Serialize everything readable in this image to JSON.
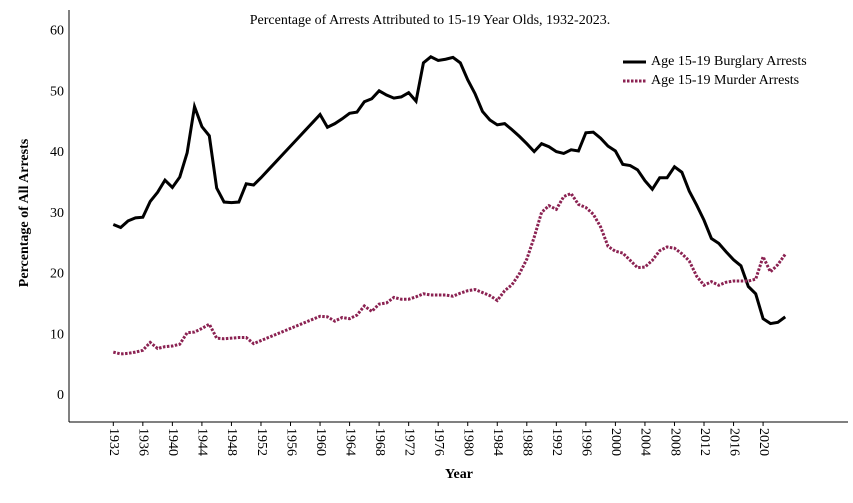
{
  "chart_data": {
    "type": "line",
    "title": "Percentage of Arrests Attributed to 15-19 Year Olds, 1932-2023.",
    "x_label": "Year",
    "y_label": "Percentage of All Arrests",
    "x": [
      1932,
      1933,
      1934,
      1935,
      1936,
      1937,
      1938,
      1939,
      1940,
      1941,
      1942,
      1943,
      1944,
      1945,
      1946,
      1947,
      1948,
      1949,
      1950,
      1951,
      1952,
      1953,
      1954,
      1955,
      1956,
      1957,
      1958,
      1959,
      1960,
      1961,
      1962,
      1963,
      1964,
      1965,
      1966,
      1967,
      1968,
      1969,
      1970,
      1971,
      1972,
      1973,
      1974,
      1975,
      1976,
      1977,
      1978,
      1979,
      1980,
      1981,
      1982,
      1983,
      1984,
      1985,
      1986,
      1987,
      1988,
      1989,
      1990,
      1991,
      1992,
      1993,
      1994,
      1995,
      1996,
      1997,
      1998,
      1999,
      2000,
      2001,
      2002,
      2003,
      2004,
      2005,
      2006,
      2007,
      2008,
      2009,
      2010,
      2011,
      2012,
      2013,
      2014,
      2015,
      2016,
      2017,
      2018,
      2019,
      2020,
      2021,
      2022,
      2023
    ],
    "series": [
      {
        "name": "Age 15-19 Burglary Arrests",
        "color": "#000000",
        "dash": "solid",
        "values": [
          28.2,
          27.7,
          28.8,
          29.3,
          29.4,
          32,
          33.5,
          35.5,
          34.3,
          36,
          40,
          47.6,
          44.3,
          42.8,
          34.2,
          31.9,
          31.8,
          31.9,
          34.9,
          34.7,
          35.9,
          37.2,
          38.5,
          39.8,
          41.1,
          42.4,
          43.7,
          45,
          46.3,
          44.2,
          44.8,
          45.6,
          46.5,
          46.7,
          48.4,
          48.9,
          50.2,
          49.5,
          49,
          49.2,
          49.9,
          48.5,
          54.8,
          55.8,
          55.2,
          55.4,
          55.7,
          54.8,
          52,
          49.7,
          46.8,
          45.4,
          44.6,
          44.8,
          43.8,
          42.7,
          41.5,
          40.2,
          41.5,
          41,
          40.2,
          39.9,
          40.5,
          40.3,
          43.3,
          43.4,
          42.4,
          41.1,
          40.3,
          38.1,
          37.9,
          37.2,
          35.4,
          34,
          35.9,
          35.9,
          37.7,
          36.8,
          33.7,
          31.4,
          28.9,
          25.9,
          25.1,
          23.7,
          22.4,
          21.4,
          18,
          16.8,
          12.7,
          11.9,
          12.1,
          13
        ]
      },
      {
        "name": "Age 15-19 Murder Arrests",
        "color": "#8b2252",
        "dash": "dotted",
        "values": [
          7.2,
          6.9,
          7,
          7.2,
          7.5,
          8.8,
          7.8,
          8.1,
          8.2,
          8.5,
          10.4,
          10.5,
          11.1,
          11.8,
          9.5,
          9.4,
          9.5,
          9.6,
          9.6,
          8.6,
          9.1,
          9.6,
          10.1,
          10.6,
          11.1,
          11.6,
          12.1,
          12.6,
          13.1,
          13,
          12.3,
          12.9,
          12.7,
          13.3,
          14.8,
          13.9,
          15.1,
          15.3,
          16.2,
          15.9,
          15.9,
          16.3,
          16.8,
          16.6,
          16.6,
          16.6,
          16.4,
          16.9,
          17.3,
          17.5,
          17,
          16.5,
          15.7,
          17.3,
          18.3,
          20.1,
          22.5,
          26.1,
          30.2,
          31.3,
          30.7,
          32.8,
          33.3,
          31.5,
          31,
          29.9,
          27.8,
          24.6,
          23.8,
          23.5,
          22.3,
          21.1,
          21.2,
          22.3,
          23.9,
          24.5,
          24.3,
          23.4,
          22.2,
          19.7,
          18.2,
          18.8,
          18.2,
          18.7,
          18.9,
          18.9,
          18.9,
          19.2,
          22.9,
          20.4,
          21.6,
          23.3
        ]
      }
    ],
    "xlim": [
      1926,
      2031.5
    ],
    "xticks": [
      1932,
      1936,
      1940,
      1944,
      1948,
      1952,
      1956,
      1960,
      1964,
      1968,
      1972,
      1976,
      1980,
      1984,
      1988,
      1992,
      1996,
      2000,
      2004,
      2008,
      2012,
      2016,
      2020
    ],
    "ylim": [
      -4.3,
      63.5
    ],
    "yticks": [
      0,
      10,
      20,
      30,
      40,
      50,
      60
    ],
    "legend": "upper right",
    "grid": false
  }
}
